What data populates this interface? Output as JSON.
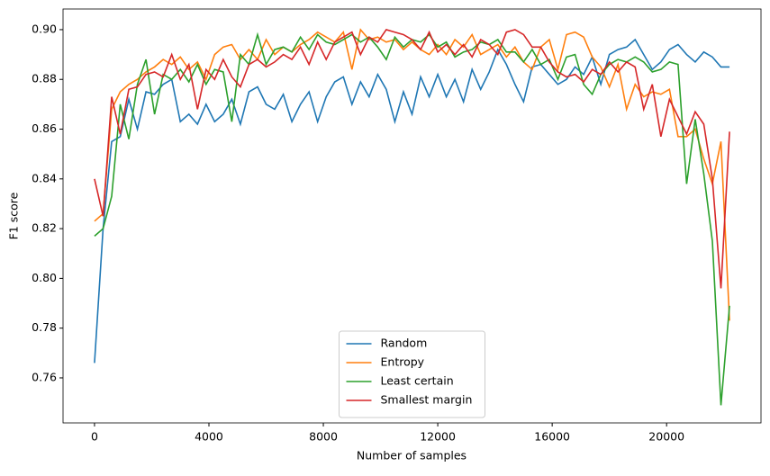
{
  "chart_data": {
    "type": "line",
    "xlabel": "Number of samples",
    "ylabel": "F1 score",
    "x": [
      0,
      300,
      600,
      900,
      1200,
      1500,
      1800,
      2100,
      2400,
      2700,
      3000,
      3300,
      3600,
      3900,
      4200,
      4500,
      4800,
      5100,
      5400,
      5700,
      6000,
      6300,
      6600,
      6900,
      7200,
      7500,
      7800,
      8100,
      8400,
      8700,
      9000,
      9300,
      9600,
      9900,
      10200,
      10500,
      10800,
      11100,
      11400,
      11700,
      12000,
      12300,
      12600,
      12900,
      13200,
      13500,
      13800,
      14100,
      14400,
      14700,
      15000,
      15300,
      15600,
      15900,
      16200,
      16500,
      16800,
      17100,
      17400,
      17700,
      18000,
      18300,
      18600,
      18900,
      19200,
      19500,
      19800,
      20100,
      20400,
      20700,
      21000,
      21300,
      21600,
      21900,
      22200
    ],
    "series": [
      {
        "name": "Random",
        "color": "#1f77b4",
        "values": [
          0.766,
          0.82,
          0.855,
          0.857,
          0.872,
          0.86,
          0.875,
          0.874,
          0.878,
          0.88,
          0.863,
          0.866,
          0.862,
          0.87,
          0.863,
          0.866,
          0.872,
          0.862,
          0.875,
          0.877,
          0.87,
          0.868,
          0.874,
          0.863,
          0.87,
          0.875,
          0.863,
          0.873,
          0.879,
          0.881,
          0.87,
          0.879,
          0.873,
          0.882,
          0.876,
          0.863,
          0.875,
          0.866,
          0.881,
          0.873,
          0.882,
          0.873,
          0.88,
          0.871,
          0.884,
          0.876,
          0.883,
          0.892,
          0.886,
          0.878,
          0.871,
          0.885,
          0.886,
          0.882,
          0.878,
          0.88,
          0.885,
          0.882,
          0.889,
          0.878,
          0.89,
          0.892,
          0.893,
          0.896,
          0.89,
          0.884,
          0.887,
          0.892,
          0.894,
          0.89,
          0.887,
          0.891,
          0.889,
          0.885,
          0.885
        ]
      },
      {
        "name": "Entropy",
        "color": "#ff7f0e",
        "values": [
          0.823,
          0.826,
          0.868,
          0.875,
          0.878,
          0.88,
          0.883,
          0.885,
          0.888,
          0.886,
          0.889,
          0.884,
          0.887,
          0.88,
          0.89,
          0.893,
          0.894,
          0.888,
          0.892,
          0.888,
          0.896,
          0.89,
          0.893,
          0.891,
          0.894,
          0.896,
          0.899,
          0.897,
          0.895,
          0.899,
          0.884,
          0.9,
          0.896,
          0.897,
          0.895,
          0.896,
          0.892,
          0.895,
          0.892,
          0.89,
          0.894,
          0.89,
          0.896,
          0.893,
          0.898,
          0.89,
          0.892,
          0.894,
          0.889,
          0.893,
          0.887,
          0.884,
          0.893,
          0.896,
          0.884,
          0.898,
          0.899,
          0.897,
          0.889,
          0.885,
          0.877,
          0.886,
          0.868,
          0.878,
          0.873,
          0.875,
          0.874,
          0.876,
          0.857,
          0.857,
          0.86,
          0.848,
          0.838,
          0.855,
          0.783
        ]
      },
      {
        "name": "Least certain",
        "color": "#2ca02c",
        "values": [
          0.817,
          0.82,
          0.833,
          0.87,
          0.856,
          0.878,
          0.888,
          0.866,
          0.882,
          0.88,
          0.884,
          0.879,
          0.886,
          0.878,
          0.884,
          0.883,
          0.863,
          0.89,
          0.886,
          0.898,
          0.886,
          0.892,
          0.893,
          0.891,
          0.897,
          0.892,
          0.898,
          0.895,
          0.894,
          0.896,
          0.898,
          0.895,
          0.897,
          0.893,
          0.888,
          0.897,
          0.893,
          0.896,
          0.895,
          0.898,
          0.893,
          0.895,
          0.889,
          0.891,
          0.892,
          0.895,
          0.894,
          0.896,
          0.891,
          0.891,
          0.887,
          0.892,
          0.886,
          0.888,
          0.88,
          0.889,
          0.89,
          0.878,
          0.874,
          0.882,
          0.886,
          0.888,
          0.887,
          0.889,
          0.887,
          0.883,
          0.884,
          0.887,
          0.886,
          0.838,
          0.864,
          0.842,
          0.815,
          0.749,
          0.789
        ]
      },
      {
        "name": "Smallest margin",
        "color": "#d62728",
        "values": [
          0.84,
          0.825,
          0.873,
          0.858,
          0.876,
          0.877,
          0.882,
          0.883,
          0.881,
          0.89,
          0.88,
          0.886,
          0.868,
          0.884,
          0.88,
          0.888,
          0.881,
          0.877,
          0.886,
          0.888,
          0.885,
          0.887,
          0.89,
          0.888,
          0.893,
          0.886,
          0.895,
          0.888,
          0.895,
          0.897,
          0.899,
          0.89,
          0.897,
          0.895,
          0.9,
          0.899,
          0.898,
          0.896,
          0.892,
          0.899,
          0.891,
          0.894,
          0.89,
          0.894,
          0.889,
          0.896,
          0.894,
          0.89,
          0.899,
          0.9,
          0.898,
          0.893,
          0.893,
          0.887,
          0.883,
          0.881,
          0.882,
          0.879,
          0.884,
          0.882,
          0.887,
          0.883,
          0.887,
          0.885,
          0.868,
          0.878,
          0.857,
          0.872,
          0.865,
          0.858,
          0.867,
          0.862,
          0.84,
          0.796,
          0.859
        ]
      }
    ],
    "xlim": [
      -1100,
      23300
    ],
    "xticks": [
      0,
      4000,
      8000,
      12000,
      16000,
      20000
    ],
    "ylim": [
      0.7419,
      0.9083
    ],
    "yticks": [
      0.76,
      0.78,
      {
        "value": 0.8,
        "label": "0.80"
      },
      0.82,
      0.84,
      0.86,
      0.88,
      {
        "value": 0.9,
        "label": "0.90"
      }
    ],
    "legend": "lower center"
  }
}
